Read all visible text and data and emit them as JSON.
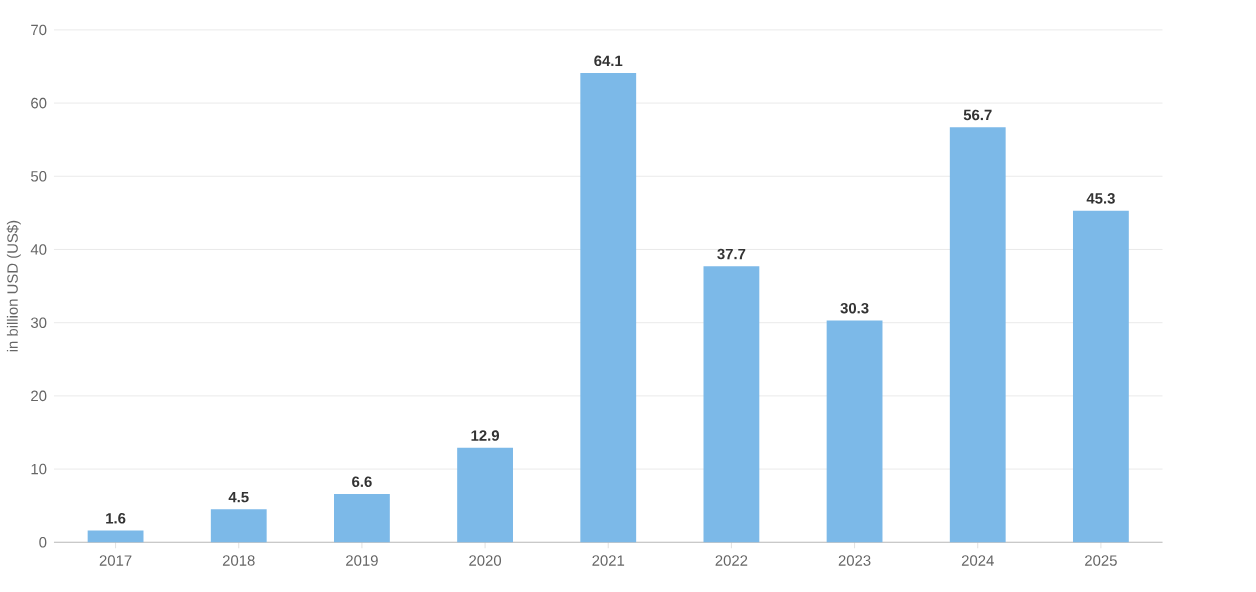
{
  "chart_data": {
    "type": "bar",
    "ylabel": "in billion USD (US$)",
    "categories": [
      "2017",
      "2018",
      "2019",
      "2020",
      "2021",
      "2022",
      "2023",
      "2024",
      "2025"
    ],
    "values": [
      1.6,
      4.5,
      6.6,
      12.9,
      64.1,
      37.7,
      30.3,
      56.7,
      45.3
    ],
    "color": "#7cb9e8",
    "ylim": [
      0,
      70
    ],
    "yticks": [
      0,
      10,
      20,
      30,
      40,
      50,
      60,
      70
    ],
    "grid": "y",
    "data_labels": true
  }
}
